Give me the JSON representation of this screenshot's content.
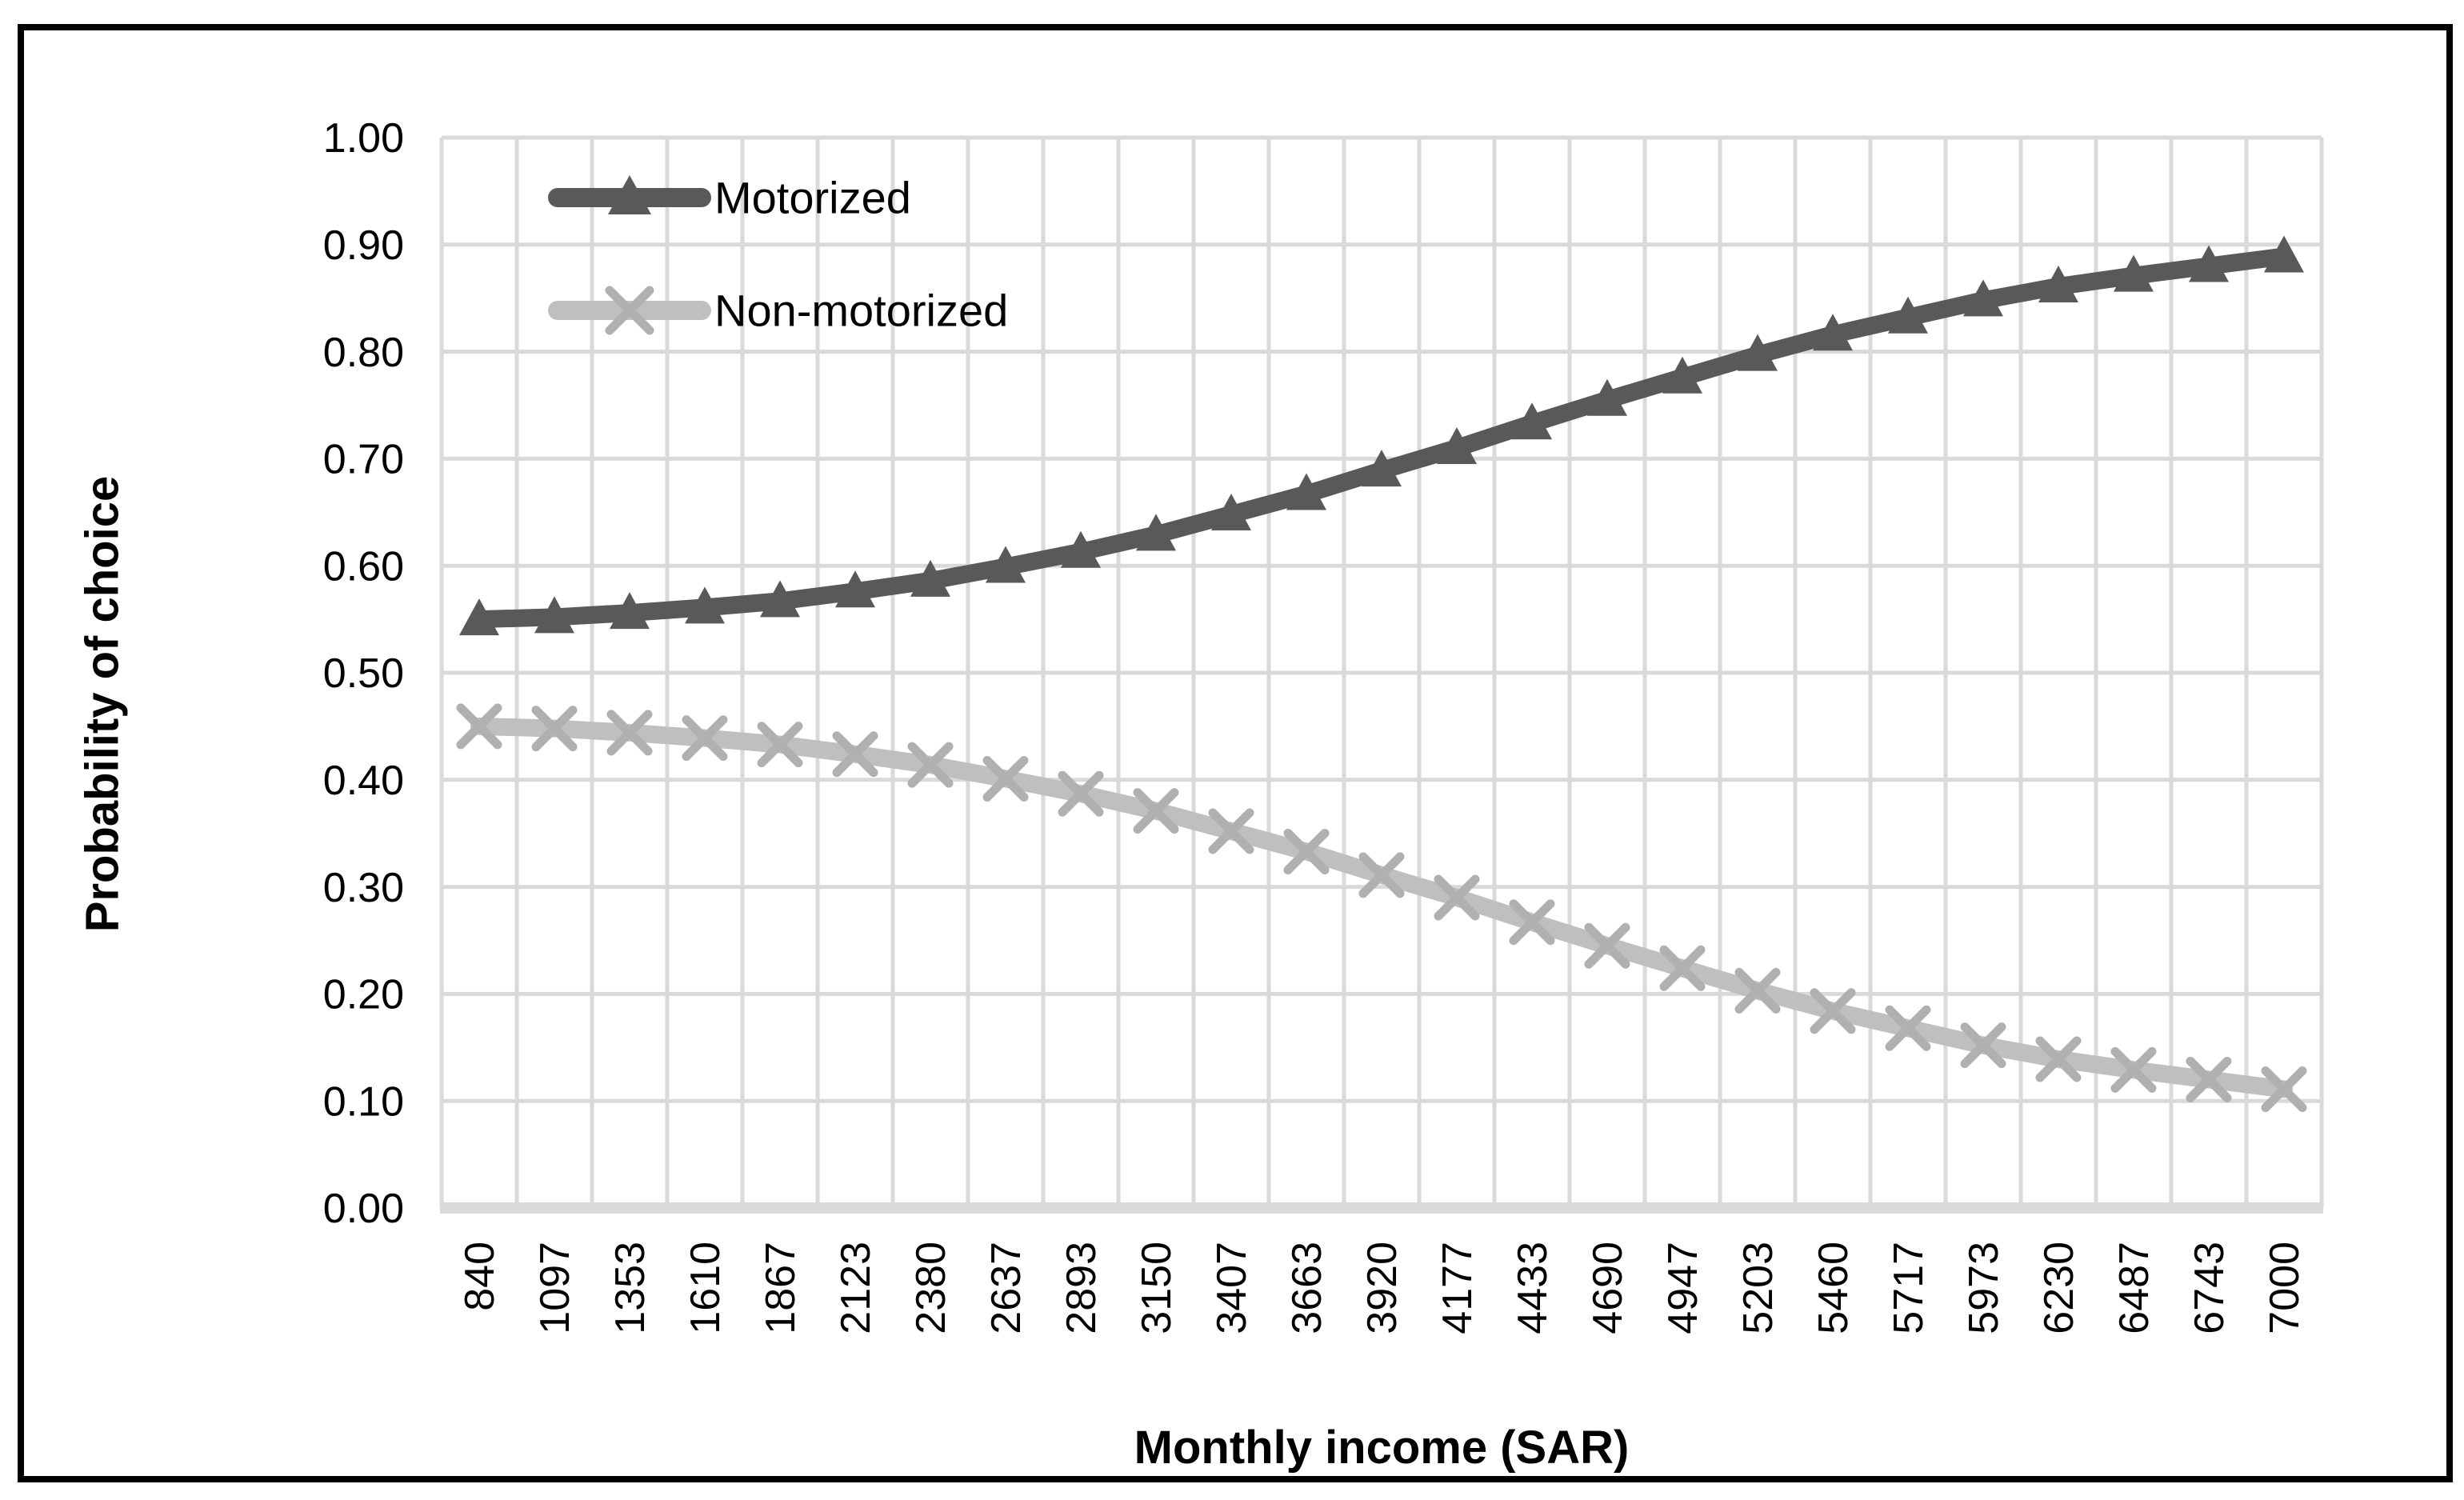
{
  "chart_data": {
    "type": "line",
    "title": "",
    "xlabel": "Monthly income (SAR)",
    "ylabel": "Probability of choice",
    "categories": [
      "840",
      "1097",
      "1353",
      "1610",
      "1867",
      "2123",
      "2380",
      "2637",
      "2893",
      "3150",
      "3407",
      "3663",
      "3920",
      "4177",
      "4433",
      "4690",
      "4947",
      "5203",
      "5460",
      "5717",
      "5973",
      "6230",
      "6487",
      "6743",
      "7000"
    ],
    "series": [
      {
        "name": "Motorized",
        "marker": "triangle",
        "color": "#595959",
        "values": [
          0.55,
          0.552,
          0.556,
          0.561,
          0.567,
          0.576,
          0.586,
          0.599,
          0.613,
          0.629,
          0.648,
          0.667,
          0.689,
          0.71,
          0.733,
          0.755,
          0.776,
          0.797,
          0.816,
          0.832,
          0.848,
          0.861,
          0.871,
          0.88,
          0.889
        ]
      },
      {
        "name": "Non-motorized",
        "marker": "x",
        "color": "#bfbfbf",
        "marker_color": "#b0b0b0",
        "values": [
          0.45,
          0.448,
          0.444,
          0.439,
          0.433,
          0.424,
          0.414,
          0.401,
          0.387,
          0.371,
          0.352,
          0.333,
          0.311,
          0.29,
          0.267,
          0.245,
          0.224,
          0.203,
          0.184,
          0.168,
          0.152,
          0.139,
          0.129,
          0.12,
          0.111
        ]
      }
    ],
    "ylim": [
      0.0,
      1.0
    ],
    "ytick_step": 0.1,
    "yticks": [
      "1.00",
      "0.90",
      "0.80",
      "0.70",
      "0.60",
      "0.50",
      "0.40",
      "0.30",
      "0.20",
      "0.10",
      "0.00"
    ],
    "grid": true,
    "gridline_color": "#d9d9d9",
    "legend_position": "top-left-inside",
    "legend": [
      "Motorized",
      "Non-motorized"
    ]
  },
  "colors": {
    "background": "#ffffff",
    "frame_border": "#000000",
    "text": "#000000",
    "gridline": "#d9d9d9"
  }
}
